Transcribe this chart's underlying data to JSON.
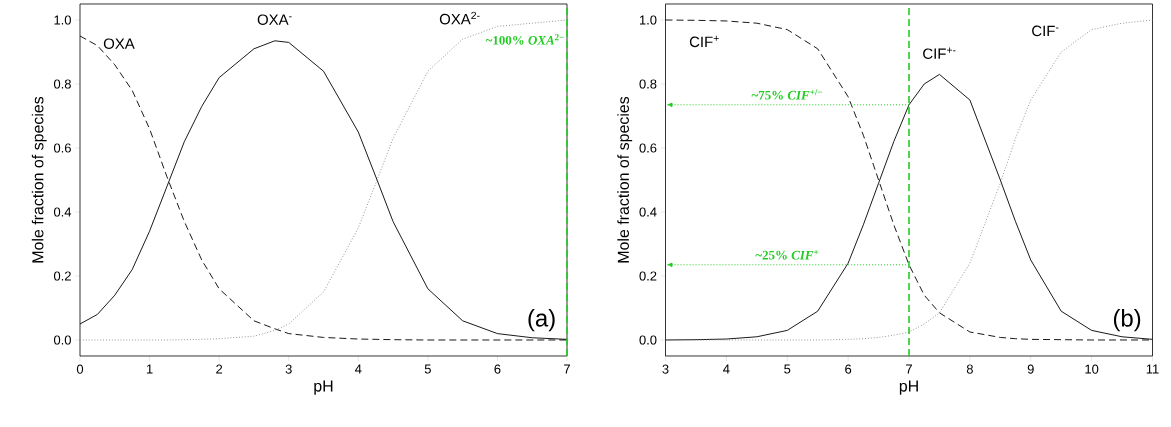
{
  "chart_data": [
    {
      "type": "line",
      "xlabel": "pH",
      "ylabel": "Mole fraction of species",
      "x": [
        0,
        0.25,
        0.5,
        0.75,
        1,
        1.25,
        1.5,
        1.75,
        2,
        2.5,
        2.8,
        3,
        3.5,
        4,
        4.27,
        4.5,
        5,
        5.5,
        6,
        6.5,
        7
      ],
      "series": [
        {
          "name": "OXA",
          "color": "#000000",
          "line_style": "dashed",
          "values": [
            0.95,
            0.92,
            0.86,
            0.78,
            0.66,
            0.51,
            0.37,
            0.25,
            0.16,
            0.06,
            0.035,
            0.02,
            0.008,
            0.003,
            0.002,
            0.001,
            0,
            0,
            0,
            0,
            0
          ]
        },
        {
          "name": "OXA$^{-}$",
          "color": "#000000",
          "line_style": "solid",
          "values": [
            0.05,
            0.08,
            0.14,
            0.22,
            0.34,
            0.48,
            0.62,
            0.73,
            0.82,
            0.91,
            0.935,
            0.93,
            0.84,
            0.65,
            0.5,
            0.37,
            0.16,
            0.06,
            0.02,
            0.007,
            0.002
          ]
        },
        {
          "name": "OXA$^{2-}$",
          "color": "#808080",
          "line_style": "dotted",
          "values": [
            0,
            0,
            0,
            0,
            0,
            0,
            0.001,
            0.002,
            0.004,
            0.012,
            0.03,
            0.05,
            0.15,
            0.35,
            0.5,
            0.63,
            0.84,
            0.94,
            0.98,
            0.99,
            1.0
          ]
        }
      ],
      "xlim": [
        0,
        7
      ],
      "xticks": [
        0,
        1,
        2,
        3,
        4,
        5,
        6,
        7
      ],
      "ylim": [
        -0.05,
        1.05
      ],
      "yticks": [
        {
          "value": 0,
          "label": "0.0"
        },
        {
          "value": 0.2,
          "label": "0.2"
        },
        {
          "value": 0.4,
          "label": "0.4"
        },
        {
          "value": 0.6,
          "label": "0.6"
        },
        {
          "value": 0.8,
          "label": "0.8"
        },
        {
          "value": 1,
          "label": "1.0"
        }
      ],
      "ref_lines": [
        {
          "axis": "x",
          "value": 7,
          "label": "~100% *OXA*$^{2−}$",
          "color": "#22cc22",
          "line_style": "dashed"
        }
      ],
      "annotations": [
        "(a)"
      ]
    },
    {
      "type": "line",
      "xlabel": "pH",
      "ylabel": "Mole fraction of species",
      "x": [
        3,
        3.5,
        4,
        4.5,
        5,
        5.5,
        6,
        6.25,
        6.5,
        6.75,
        7,
        7.25,
        7.5,
        8,
        8.5,
        8.75,
        9,
        9.5,
        10,
        10.5,
        11
      ],
      "series": [
        {
          "name": "CIF$^{+}$",
          "color": "#000000",
          "line_style": "dashed",
          "values": [
            1.0,
            0.999,
            0.997,
            0.99,
            0.97,
            0.91,
            0.76,
            0.64,
            0.5,
            0.36,
            0.235,
            0.14,
            0.085,
            0.025,
            0.008,
            0.004,
            0.002,
            0.001,
            0,
            0,
            0
          ]
        },
        {
          "name": "CIF$^{+-}$",
          "color": "#000000",
          "line_style": "solid",
          "values": [
            0,
            0.001,
            0.003,
            0.01,
            0.03,
            0.09,
            0.24,
            0.36,
            0.49,
            0.62,
            0.735,
            0.8,
            0.83,
            0.75,
            0.5,
            0.37,
            0.25,
            0.09,
            0.03,
            0.01,
            0.002
          ]
        },
        {
          "name": "CIF$^{-}$",
          "color": "#808080",
          "line_style": "dotted",
          "values": [
            0,
            0,
            0,
            0,
            0,
            0,
            0.002,
            0.004,
            0.008,
            0.015,
            0.025,
            0.05,
            0.085,
            0.24,
            0.49,
            0.63,
            0.75,
            0.9,
            0.97,
            0.99,
            1.0
          ]
        }
      ],
      "xlim": [
        3,
        11
      ],
      "xticks": [
        3,
        4,
        5,
        6,
        7,
        8,
        9,
        10,
        11
      ],
      "ylim": [
        -0.05,
        1.05
      ],
      "yticks": [
        {
          "value": 0,
          "label": "0.0"
        },
        {
          "value": 0.2,
          "label": "0.2"
        },
        {
          "value": 0.4,
          "label": "0.4"
        },
        {
          "value": 0.6,
          "label": "0.6"
        },
        {
          "value": 0.8,
          "label": "0.8"
        },
        {
          "value": 1,
          "label": "1.0"
        }
      ],
      "ref_lines": [
        {
          "axis": "x",
          "value": 7,
          "color": "#22cc22",
          "line_style": "dashed"
        },
        {
          "axis": "y",
          "value": 0.735,
          "label": "~75% *CIF*$^{+/−}$",
          "color": "#22cc22",
          "line_style": "dotted"
        },
        {
          "axis": "y",
          "value": 0.235,
          "label": "~25% *CIF*$^{+}$",
          "color": "#22cc22",
          "line_style": "dotted"
        }
      ],
      "annotations": [
        "(b)"
      ]
    }
  ]
}
